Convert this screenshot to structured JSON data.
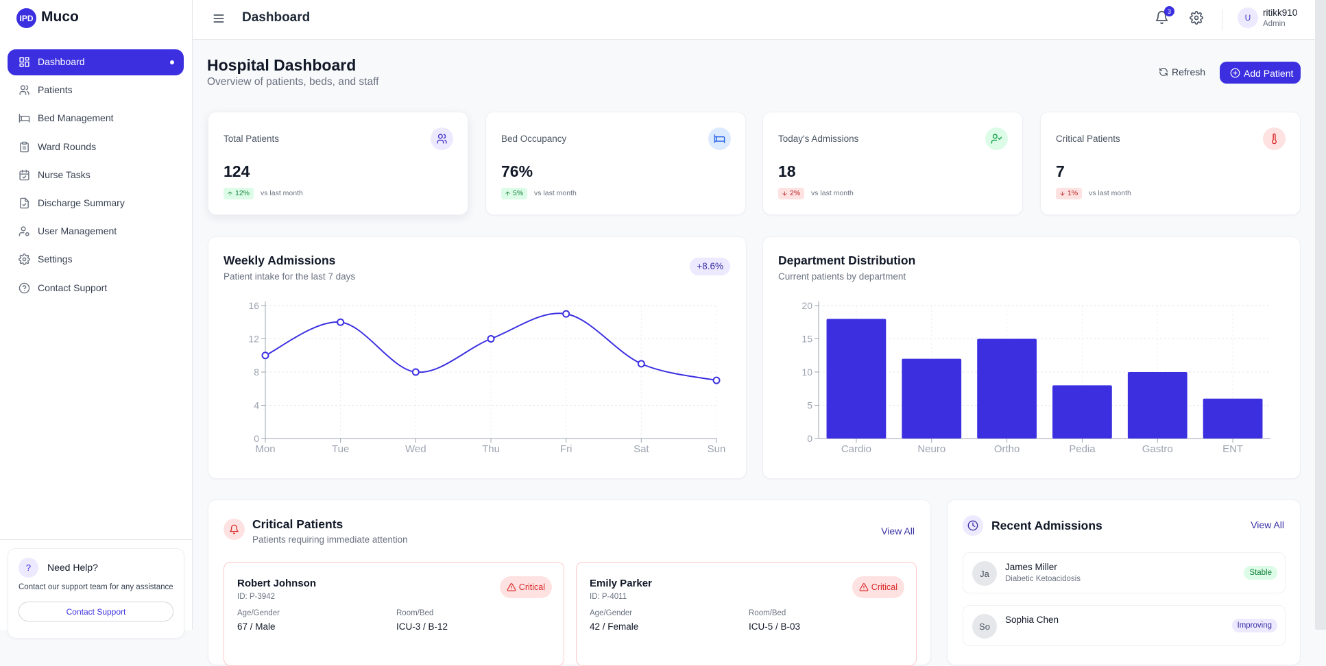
{
  "brand": {
    "logo": "IPD",
    "name": "Muco"
  },
  "nav": [
    "Dashboard",
    "Patients",
    "Bed Management",
    "Ward Rounds",
    "Nurse Tasks",
    "Discharge Summary",
    "User Management",
    "Settings",
    "Contact Support"
  ],
  "help": {
    "icon": "?",
    "title": "Need Help?",
    "text": "Contact our support team for any assistance",
    "button": "Contact Support"
  },
  "header": {
    "title": "Dashboard",
    "notifications": 3,
    "user": {
      "avatar": "U",
      "name": "ritikk910",
      "role": "Admin"
    }
  },
  "page": {
    "title": "Hospital Dashboard",
    "subtitle": "Overview of patients, beds, and staff",
    "refresh": "Refresh",
    "add": "Add Patient"
  },
  "stats": [
    {
      "label": "Total Patients",
      "value": "124",
      "change": "12%",
      "note": "vs last month"
    },
    {
      "label": "Bed Occupancy",
      "value": "76%",
      "change": "5%",
      "note": "vs last month"
    },
    {
      "label": "Today's Admissions",
      "value": "18",
      "change": "2%",
      "note": "vs last month"
    },
    {
      "label": "Critical Patients",
      "value": "7",
      "change": "1%",
      "note": "vs last month"
    }
  ],
  "charts": [
    {
      "type": "line",
      "title": "Weekly Admissions",
      "subtitle": "Patient intake for the last 7 days",
      "badge": "+8.6%",
      "categories": [
        "Mon",
        "Tue",
        "Wed",
        "Thu",
        "Fri",
        "Sat",
        "Sun"
      ],
      "values": [
        10,
        14,
        8,
        12,
        15,
        9,
        7
      ],
      "ylim": [
        0,
        16
      ],
      "yticks": [
        0,
        4,
        8,
        12,
        16
      ],
      "color": "#3b2fe0",
      "grid": true
    },
    {
      "type": "bar",
      "title": "Department Distribution",
      "subtitle": "Current patients by department",
      "categories": [
        "Cardio",
        "Neuro",
        "Ortho",
        "Pedia",
        "Gastro",
        "ENT"
      ],
      "values": [
        18,
        12,
        15,
        8,
        10,
        6
      ],
      "ylim": [
        0,
        20
      ],
      "yticks": [
        0,
        5,
        10,
        15,
        20
      ],
      "color": "#3b2fe0",
      "grid": true
    }
  ],
  "critical": {
    "title": "Critical Patients",
    "subtitle": "Patients requiring immediate attention",
    "view_all": "View All",
    "patients": [
      {
        "name": "Robert Johnson",
        "id": "ID: P-3942",
        "status": "Critical",
        "age_label": "Age/Gender",
        "age": "67 / Male",
        "room_label": "Room/Bed",
        "room": "ICU-3 / B-12"
      },
      {
        "name": "Emily Parker",
        "id": "ID: P-4011",
        "status": "Critical",
        "age_label": "Age/Gender",
        "age": "42 / Female",
        "room_label": "Room/Bed",
        "room": "ICU-5 / B-03"
      }
    ]
  },
  "recent": {
    "title": "Recent Admissions",
    "view_all": "View All",
    "patients": [
      {
        "initials": "Ja",
        "name": "James Miller",
        "diagnosis": "Diabetic Ketoacidosis",
        "status": "Stable"
      },
      {
        "initials": "So",
        "name": "Sophia Chen",
        "status": "Improving"
      }
    ]
  }
}
